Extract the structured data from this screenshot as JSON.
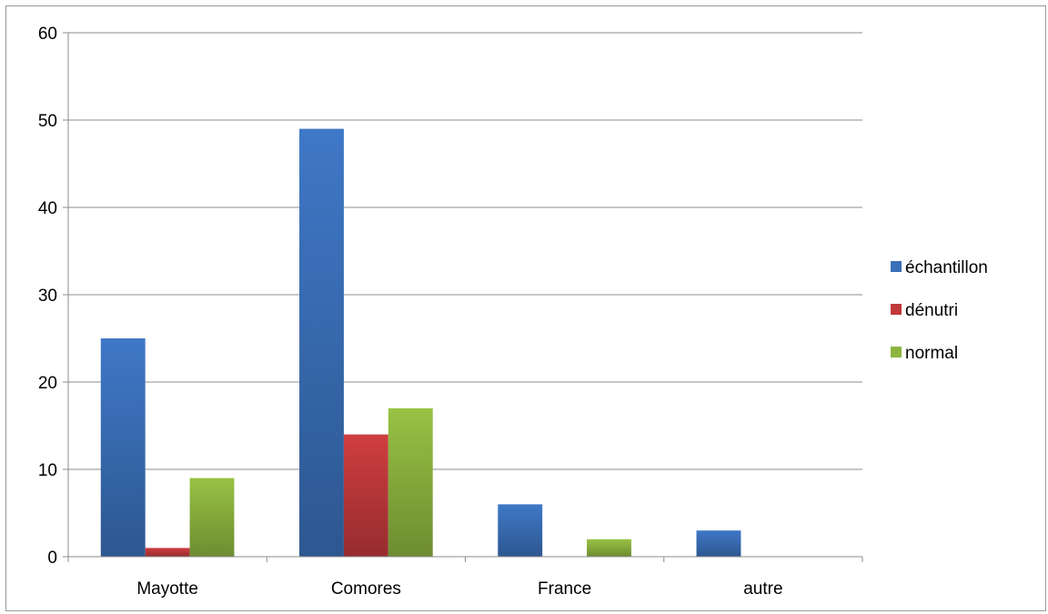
{
  "chart_data": {
    "type": "bar",
    "categories": [
      "Mayotte",
      "Comores",
      "France",
      "autre"
    ],
    "series": [
      {
        "name": "échantillon",
        "values": [
          25,
          49,
          6,
          3
        ],
        "color": "#3a6fb8"
      },
      {
        "name": "dénutri",
        "values": [
          1,
          14,
          0,
          0
        ],
        "color": "#c0393b"
      },
      {
        "name": "normal",
        "values": [
          9,
          17,
          2,
          0
        ],
        "color": "#8db43f"
      }
    ],
    "title": "",
    "xlabel": "",
    "ylabel": "",
    "ylim": [
      0,
      60
    ],
    "yticks": [
      0,
      10,
      20,
      30,
      40,
      50,
      60
    ],
    "grid": true,
    "legend_position": "right"
  }
}
